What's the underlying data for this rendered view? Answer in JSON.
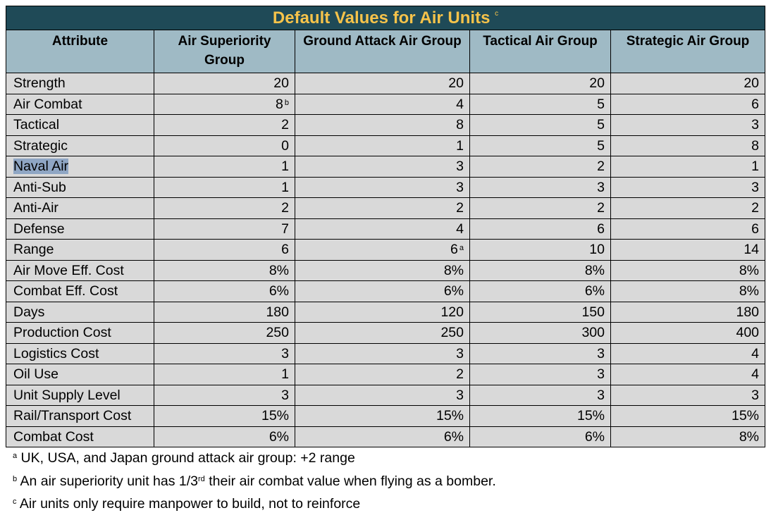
{
  "title": "Default Values for Air Units",
  "title_note": "c",
  "headers": [
    "Attribute",
    "Air Superiority Group",
    "Ground Attack Air Group",
    "Tactical Air Group",
    "Strategic Air Group"
  ],
  "rows": [
    {
      "label": "Strength",
      "values": [
        "20",
        "20",
        "20",
        "20"
      ]
    },
    {
      "label": "Air Combat",
      "values": [
        "8",
        "4",
        "5",
        "6"
      ],
      "notes": [
        "b",
        "",
        "",
        ""
      ]
    },
    {
      "label": "Tactical",
      "values": [
        "2",
        "8",
        "5",
        "3"
      ]
    },
    {
      "label": "Strategic",
      "values": [
        "0",
        "1",
        "5",
        "8"
      ]
    },
    {
      "label": "Naval Air",
      "values": [
        "1",
        "3",
        "2",
        "1"
      ],
      "highlighted": true
    },
    {
      "label": "Anti-Sub",
      "values": [
        "1",
        "3",
        "3",
        "3"
      ]
    },
    {
      "label": "Anti-Air",
      "values": [
        "2",
        "2",
        "2",
        "2"
      ]
    },
    {
      "label": "Defense",
      "values": [
        "7",
        "4",
        "6",
        "6"
      ]
    },
    {
      "label": "Range",
      "values": [
        "6",
        "6",
        "10",
        "14"
      ],
      "notes": [
        "",
        "a",
        "",
        ""
      ]
    },
    {
      "label": "Air Move Eff. Cost",
      "values": [
        "8%",
        "8%",
        "8%",
        "8%"
      ]
    },
    {
      "label": "Combat Eff. Cost",
      "values": [
        "6%",
        "6%",
        "6%",
        "8%"
      ]
    },
    {
      "label": "Days",
      "values": [
        "180",
        "120",
        "150",
        "180"
      ]
    },
    {
      "label": "Production Cost",
      "values": [
        "250",
        "250",
        "300",
        "400"
      ]
    },
    {
      "label": "Logistics Cost",
      "values": [
        "3",
        "3",
        "3",
        "4"
      ]
    },
    {
      "label": "Oil Use",
      "values": [
        "1",
        "2",
        "3",
        "4"
      ]
    },
    {
      "label": "Unit Supply Level",
      "values": [
        "3",
        "3",
        "3",
        "3"
      ]
    },
    {
      "label": "Rail/Transport Cost",
      "values": [
        "15%",
        "15%",
        "15%",
        "15%"
      ]
    },
    {
      "label": "Combat Cost",
      "values": [
        "6%",
        "6%",
        "6%",
        "8%"
      ]
    }
  ],
  "footnotes": [
    {
      "mark": "a",
      "text": " UK, USA, and Japan ground attack air group: +2 range"
    },
    {
      "mark": "b",
      "text": " An air superiority unit has 1/3",
      "sup": "rd",
      "text2": " their air combat value when flying as a bomber."
    },
    {
      "mark": "c",
      "text": " Air units only require manpower to build, not to reinforce"
    }
  ],
  "colors": {
    "title_bg": "#1f4a57",
    "title_text": "#f6c34a",
    "header_bg": "#9fbac5",
    "cell_bg": "#d9d9d9",
    "highlight": "#8fa6c4"
  }
}
